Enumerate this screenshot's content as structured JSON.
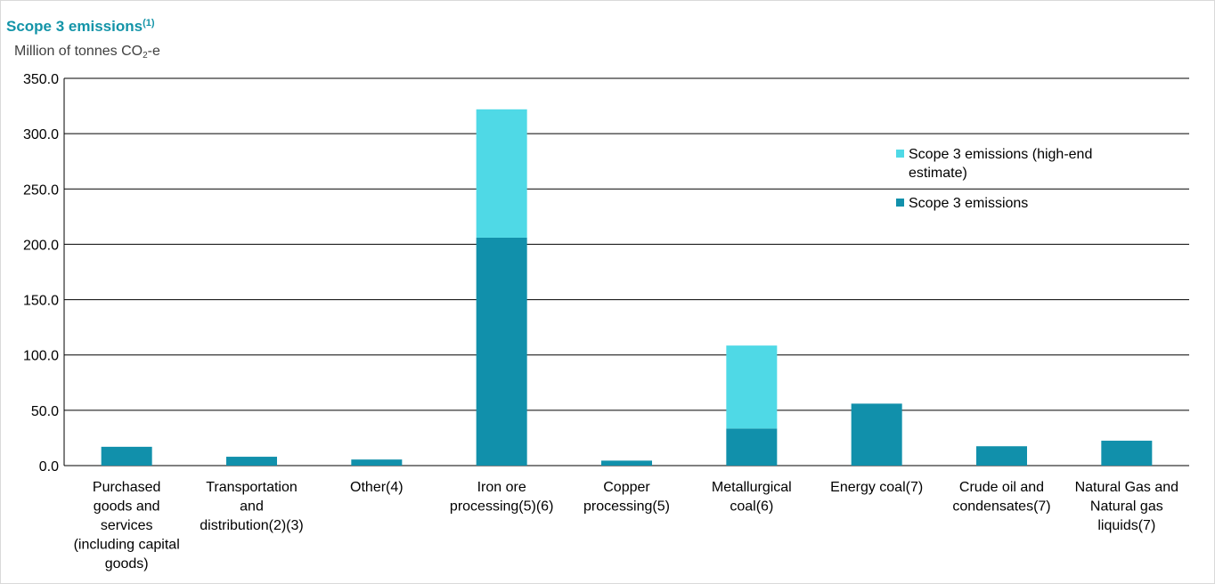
{
  "chart_data": {
    "type": "bar",
    "stacked": true,
    "title": "Scope 3 emissions",
    "title_superscript": "(1)",
    "ylabel_prefix": "Million of tonnes CO",
    "ylabel_sub": "2",
    "ylabel_suffix": "-e",
    "ylim": [
      0,
      350
    ],
    "yticks": [
      "0.0",
      "50.0",
      "100.0",
      "150.0",
      "200.0",
      "250.0",
      "300.0",
      "350.0"
    ],
    "grid": true,
    "legend_position": "top-right",
    "categories": [
      [
        "Purchased",
        "goods and",
        "services",
        "(including capital",
        "goods)"
      ],
      [
        "Transportation",
        "and",
        "distribution(2)(3)"
      ],
      [
        "Other(4)"
      ],
      [
        "Iron ore",
        "processing(5)(6)"
      ],
      [
        "Copper",
        "processing(5)"
      ],
      [
        "Metallurgical",
        "coal(6)"
      ],
      [
        "Energy coal(7)"
      ],
      [
        "Crude oil and",
        "condensates(7)"
      ],
      [
        "Natural Gas and",
        "Natural gas",
        "liquids(7)"
      ]
    ],
    "series": [
      {
        "name": "Scope 3 emissions",
        "color": "#1190ab",
        "values": [
          17,
          8,
          5.5,
          206,
          4.5,
          33.5,
          56,
          17.5,
          22.5
        ]
      },
      {
        "name": "Scope 3 emissions (high-end estimate)",
        "color": "#4fd9e6",
        "values": [
          0,
          0,
          0,
          116,
          0,
          75,
          0,
          0,
          0
        ]
      }
    ],
    "legend": [
      {
        "lines": [
          "Scope 3 emissions (high-end",
          "estimate)"
        ],
        "color": "#4fd9e6"
      },
      {
        "lines": [
          "Scope 3 emissions"
        ],
        "color": "#1190ab"
      }
    ]
  }
}
